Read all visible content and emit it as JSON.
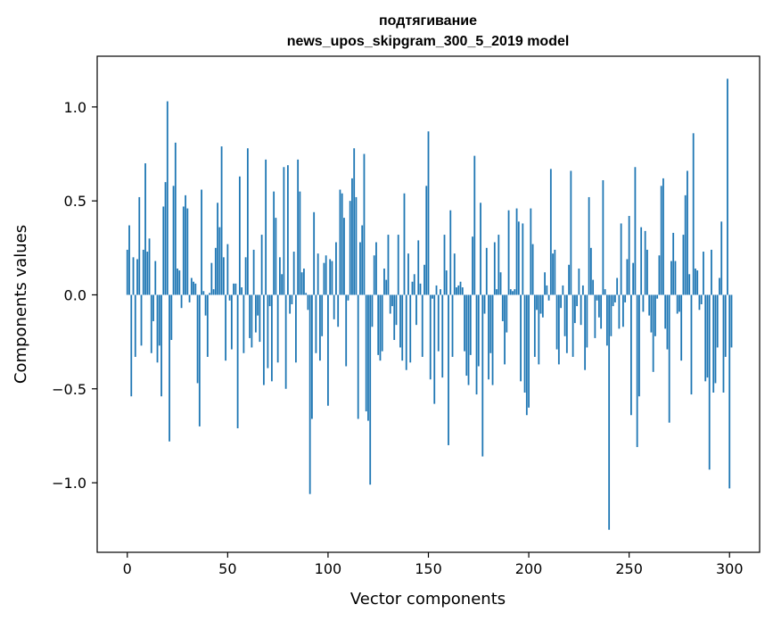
{
  "chart_data": {
    "type": "bar",
    "title": "подтягивание",
    "subtitle": "news_upos_skipgram_300_5_2019 model",
    "xlabel": "Vector components",
    "ylabel": "Components values",
    "xlim": [
      -15,
      315
    ],
    "ylim": [
      -1.37,
      1.27
    ],
    "xticks": [
      0,
      50,
      100,
      150,
      200,
      250,
      300
    ],
    "xtick_labels": [
      "0",
      "50",
      "100",
      "150",
      "200",
      "250",
      "300"
    ],
    "yticks": [
      -1.0,
      -0.5,
      0.0,
      0.5,
      1.0
    ],
    "ytick_labels": [
      "−1.0",
      "−0.5",
      "0.0",
      "0.5",
      "1.0"
    ],
    "bar_color": "#1f77b4",
    "grid": false,
    "values": [
      0.24,
      0.37,
      -0.54,
      0.2,
      -0.33,
      0.19,
      0.52,
      -0.27,
      0.24,
      0.7,
      0.23,
      0.3,
      -0.31,
      -0.14,
      0.18,
      -0.36,
      -0.27,
      -0.54,
      0.47,
      0.6,
      1.03,
      -0.78,
      -0.24,
      0.58,
      0.81,
      0.14,
      0.13,
      -0.07,
      0.47,
      0.53,
      0.46,
      -0.04,
      0.09,
      0.07,
      0.06,
      -0.47,
      -0.7,
      0.56,
      0.02,
      -0.11,
      -0.33,
      0.01,
      0.17,
      0.03,
      0.25,
      0.49,
      0.36,
      0.79,
      0.2,
      -0.35,
      0.27,
      -0.03,
      -0.29,
      0.06,
      0.06,
      -0.71,
      0.63,
      0.04,
      -0.31,
      0.2,
      0.78,
      -0.23,
      -0.28,
      0.24,
      -0.2,
      -0.11,
      -0.25,
      0.32,
      -0.48,
      0.72,
      -0.39,
      -0.06,
      -0.46,
      0.55,
      0.41,
      -0.36,
      0.2,
      0.11,
      0.68,
      -0.5,
      0.69,
      -0.1,
      -0.05,
      0.23,
      -0.36,
      0.72,
      0.55,
      0.12,
      0.14,
      0.01,
      -0.08,
      -1.06,
      -0.66,
      0.44,
      -0.31,
      0.22,
      -0.35,
      -0.22,
      0.17,
      0.21,
      -0.59,
      0.19,
      0.18,
      -0.13,
      0.28,
      -0.17,
      0.56,
      0.54,
      0.41,
      -0.38,
      -0.03,
      0.5,
      0.62,
      0.78,
      0.52,
      -0.66,
      0.28,
      0.37,
      0.75,
      -0.62,
      -0.67,
      -1.01,
      -0.17,
      0.21,
      0.28,
      -0.32,
      -0.35,
      -0.3,
      0.14,
      0.08,
      0.32,
      -0.1,
      -0.06,
      -0.24,
      -0.16,
      0.32,
      -0.28,
      -0.35,
      0.54,
      -0.4,
      0.22,
      -0.36,
      0.07,
      0.11,
      -0.16,
      0.29,
      0.06,
      -0.33,
      0.16,
      0.58,
      0.87,
      -0.45,
      -0.02,
      -0.58,
      0.05,
      -0.3,
      0.03,
      -0.44,
      0.32,
      0.13,
      -0.8,
      0.45,
      -0.33,
      0.22,
      0.04,
      0.05,
      0.07,
      0.04,
      -0.3,
      -0.43,
      -0.48,
      -0.32,
      0.31,
      0.74,
      -0.53,
      -0.38,
      0.49,
      -0.86,
      -0.1,
      0.25,
      -0.45,
      -0.31,
      -0.48,
      0.28,
      0.03,
      0.32,
      0.12,
      -0.14,
      -0.37,
      -0.2,
      0.45,
      0.03,
      0.02,
      0.03,
      0.46,
      0.39,
      -0.46,
      0.38,
      -0.52,
      -0.64,
      -0.6,
      0.46,
      0.27,
      -0.33,
      -0.08,
      -0.37,
      -0.1,
      -0.12,
      0.12,
      0.05,
      -0.03,
      0.67,
      0.22,
      0.24,
      -0.29,
      -0.37,
      -0.07,
      0.05,
      -0.22,
      -0.31,
      0.16,
      0.66,
      -0.33,
      -0.15,
      -0.06,
      0.14,
      -0.16,
      0.05,
      -0.4,
      -0.28,
      0.52,
      0.25,
      0.08,
      -0.23,
      -0.03,
      -0.12,
      -0.18,
      0.61,
      0.03,
      -0.27,
      -1.25,
      -0.22,
      -0.06,
      -0.04,
      0.09,
      -0.18,
      0.38,
      -0.17,
      -0.04,
      0.19,
      0.42,
      -0.64,
      0.17,
      0.68,
      -0.81,
      -0.54,
      0.36,
      -0.09,
      0.34,
      0.24,
      -0.11,
      -0.2,
      -0.41,
      -0.22,
      -0.02,
      0.21,
      0.58,
      0.62,
      -0.18,
      -0.29,
      -0.68,
      0.18,
      0.33,
      0.18,
      -0.1,
      -0.09,
      -0.35,
      0.32,
      0.53,
      0.66,
      0.11,
      -0.53,
      0.86,
      0.14,
      0.13,
      -0.08,
      -0.05,
      0.23,
      -0.46,
      -0.44,
      -0.93,
      0.24,
      -0.52,
      -0.47,
      -0.28,
      0.09,
      0.39,
      -0.52,
      -0.33,
      1.15,
      -1.03,
      -0.28
    ]
  }
}
